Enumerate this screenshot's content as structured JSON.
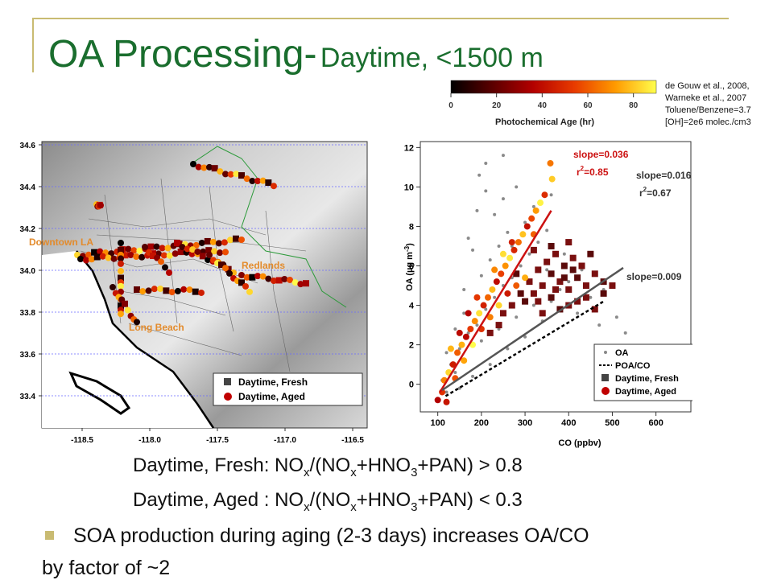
{
  "slide": {
    "title_main": "OA Processing-",
    "title_sub": "Daytime, <1500 m",
    "refs": [
      "de Gouw et al., 2008,",
      "Warneke et al., 2007",
      "Toluene/Benzene=3.7",
      "[OH]=2e6 molec./cm3"
    ],
    "formula1": {
      "prefix": "Daytime, Fresh: NO",
      "x1": "x",
      "mid1": "/(NO",
      "x2": "x",
      "mid2": "+HNO",
      "n3": "3",
      "tail": "+PAN) > 0.8"
    },
    "formula2": {
      "prefix": "Daytime, Aged : NO",
      "x1": "x",
      "mid1": "/(NO",
      "x2": "x",
      "mid2": "+HNO",
      "n3": "3",
      "tail": "+PAN) < 0.3"
    },
    "bullet": "SOA production during aging (2-3 days) increases OA/CO",
    "bullet_cont": "by factor of ~2"
  },
  "colorbar": {
    "title": "Photochemical Age (hr)",
    "ticks": [
      0,
      20,
      40,
      60,
      80
    ],
    "range": [
      0,
      90
    ],
    "colors": [
      "#000000",
      "#5a0000",
      "#b30000",
      "#e83a00",
      "#ff9a00",
      "#ffff4d"
    ]
  },
  "map": {
    "x_ticks": [
      "-118.5",
      "-118.0",
      "-117.5",
      "-117.0",
      "-116.5"
    ],
    "y_ticks": [
      "34.6",
      "34.4",
      "34.2",
      "34.0",
      "33.8",
      "33.6",
      "33.4"
    ],
    "places": [
      "Downtown LA",
      "Redlands",
      "Long Beach"
    ],
    "legend": [
      "Daytime, Fresh",
      "Daytime, Aged"
    ]
  },
  "chart_data": {
    "type": "scatter",
    "xlabel": "CO (ppbv)",
    "ylabel": "OA (µg m-3)",
    "xlim": [
      60,
      680
    ],
    "ylim": [
      -1.4,
      12.3
    ],
    "x_ticks": [
      100,
      200,
      300,
      400,
      500,
      600
    ],
    "y_ticks": [
      0,
      2,
      4,
      6,
      8,
      10,
      12
    ],
    "lines": [
      {
        "label": "slope=0.036",
        "r2": "=0.85",
        "slope": 0.036,
        "x": [
          105,
          360
        ],
        "y": [
          -0.4,
          8.8
        ],
        "color": "#cc1111"
      },
      {
        "label": "slope=0.016",
        "r2": "=0.67",
        "slope": 0.016,
        "x": [
          110,
          525
        ],
        "y": [
          -0.3,
          5.9
        ],
        "color": "#555555"
      },
      {
        "label": "slope=0.009",
        "slope": 0.009,
        "x": [
          118,
          480
        ],
        "y": [
          -0.6,
          4.2
        ],
        "color": "#000000",
        "dashed": true
      }
    ],
    "series": [
      {
        "name": "OA",
        "points": [
          [
            110,
            0.2
          ],
          [
            130,
            1.0
          ],
          [
            150,
            1.8
          ],
          [
            170,
            2.6
          ],
          [
            190,
            3.0
          ],
          [
            210,
            3.8
          ],
          [
            230,
            4.4
          ],
          [
            250,
            5.0
          ],
          [
            270,
            5.4
          ],
          [
            290,
            6.0
          ],
          [
            310,
            6.6
          ],
          [
            330,
            7.2
          ],
          [
            350,
            7.8
          ],
          [
            200,
            5.5
          ],
          [
            220,
            6.3
          ],
          [
            240,
            7.0
          ],
          [
            260,
            7.7
          ],
          [
            230,
            8.6
          ],
          [
            250,
            9.4
          ],
          [
            210,
            9.8
          ],
          [
            190,
            8.8
          ],
          [
            180,
            6.8
          ],
          [
            160,
            4.8
          ],
          [
            300,
            8.2
          ],
          [
            320,
            9.0
          ],
          [
            280,
            10.0
          ],
          [
            360,
            9.6
          ],
          [
            400,
            5.2
          ],
          [
            450,
            4.4
          ],
          [
            380,
            4.8
          ],
          [
            340,
            3.2
          ],
          [
            300,
            2.4
          ],
          [
            260,
            1.8
          ],
          [
            220,
            1.0
          ],
          [
            180,
            0.4
          ],
          [
            150,
            -0.2
          ],
          [
            120,
            -0.4
          ],
          [
            140,
            0.6
          ],
          [
            200,
            2.2
          ],
          [
            240,
            2.8
          ],
          [
            280,
            3.4
          ],
          [
            320,
            4.0
          ],
          [
            360,
            4.2
          ],
          [
            420,
            3.6
          ],
          [
            470,
            3.0
          ],
          [
            510,
            3.4
          ],
          [
            530,
            2.6
          ],
          [
            170,
            7.4
          ],
          [
            210,
            11.2
          ],
          [
            250,
            11.6
          ],
          [
            195,
            10.6
          ],
          [
            270,
            7.0
          ],
          [
            350,
            5.8
          ],
          [
            390,
            6.6
          ],
          [
            430,
            5.8
          ],
          [
            480,
            4.8
          ],
          [
            140,
            2.8
          ],
          [
            160,
            3.6
          ],
          [
            120,
            1.6
          ]
        ]
      },
      {
        "name": "Daytime, Fresh",
        "points": [
          [
            300,
            4.2
          ],
          [
            320,
            4.6
          ],
          [
            340,
            5.0
          ],
          [
            360,
            5.6
          ],
          [
            380,
            5.2
          ],
          [
            400,
            4.8
          ],
          [
            420,
            5.4
          ],
          [
            440,
            5.0
          ],
          [
            460,
            5.6
          ],
          [
            480,
            5.2
          ],
          [
            350,
            6.2
          ],
          [
            370,
            6.6
          ],
          [
            390,
            6.0
          ],
          [
            410,
            6.4
          ],
          [
            430,
            6.0
          ],
          [
            450,
            6.6
          ],
          [
            330,
            5.8
          ],
          [
            310,
            5.2
          ],
          [
            290,
            4.6
          ],
          [
            270,
            4.0
          ],
          [
            250,
            3.6
          ],
          [
            360,
            4.4
          ],
          [
            400,
            4.0
          ],
          [
            440,
            4.4
          ],
          [
            480,
            4.6
          ],
          [
            500,
            5.0
          ],
          [
            340,
            3.6
          ],
          [
            380,
            3.8
          ],
          [
            420,
            4.2
          ],
          [
            460,
            3.8
          ],
          [
            360,
            7.0
          ],
          [
            400,
            7.2
          ],
          [
            320,
            6.8
          ],
          [
            280,
            5.6
          ],
          [
            240,
            3.0
          ],
          [
            220,
            2.6
          ],
          [
            390,
            5.4
          ],
          [
            370,
            4.8
          ],
          [
            330,
            4.2
          ],
          [
            410,
            5.8
          ]
        ]
      },
      {
        "name": "Daytime, Aged",
        "points": [
          [
            100,
            -0.8
          ],
          [
            110,
            -0.4
          ],
          [
            115,
            0.2
          ],
          [
            125,
            0.6
          ],
          [
            135,
            1.0
          ],
          [
            145,
            1.6
          ],
          [
            155,
            2.0
          ],
          [
            165,
            2.4
          ],
          [
            175,
            2.8
          ],
          [
            185,
            3.2
          ],
          [
            195,
            3.6
          ],
          [
            205,
            4.0
          ],
          [
            215,
            4.4
          ],
          [
            225,
            4.8
          ],
          [
            235,
            5.2
          ],
          [
            245,
            5.6
          ],
          [
            255,
            6.0
          ],
          [
            265,
            6.4
          ],
          [
            275,
            6.8
          ],
          [
            285,
            7.2
          ],
          [
            295,
            7.6
          ],
          [
            305,
            8.0
          ],
          [
            315,
            8.4
          ],
          [
            325,
            8.8
          ],
          [
            335,
            9.2
          ],
          [
            345,
            9.6
          ],
          [
            358,
            11.2
          ],
          [
            362,
            10.4
          ],
          [
            120,
            -0.9
          ],
          [
            140,
            0.3
          ],
          [
            160,
            1.2
          ],
          [
            180,
            2.0
          ],
          [
            200,
            2.8
          ],
          [
            220,
            3.4
          ],
          [
            240,
            4.0
          ],
          [
            260,
            4.6
          ],
          [
            280,
            5.0
          ],
          [
            300,
            5.4
          ],
          [
            170,
            3.6
          ],
          [
            190,
            4.4
          ],
          [
            230,
            5.8
          ],
          [
            250,
            6.6
          ],
          [
            270,
            7.2
          ],
          [
            320,
            7.6
          ],
          [
            130,
            1.8
          ],
          [
            150,
            2.6
          ]
        ]
      }
    ],
    "legend": [
      "OA",
      "POA/CO",
      "Daytime, Fresh",
      "Daytime, Aged"
    ]
  }
}
